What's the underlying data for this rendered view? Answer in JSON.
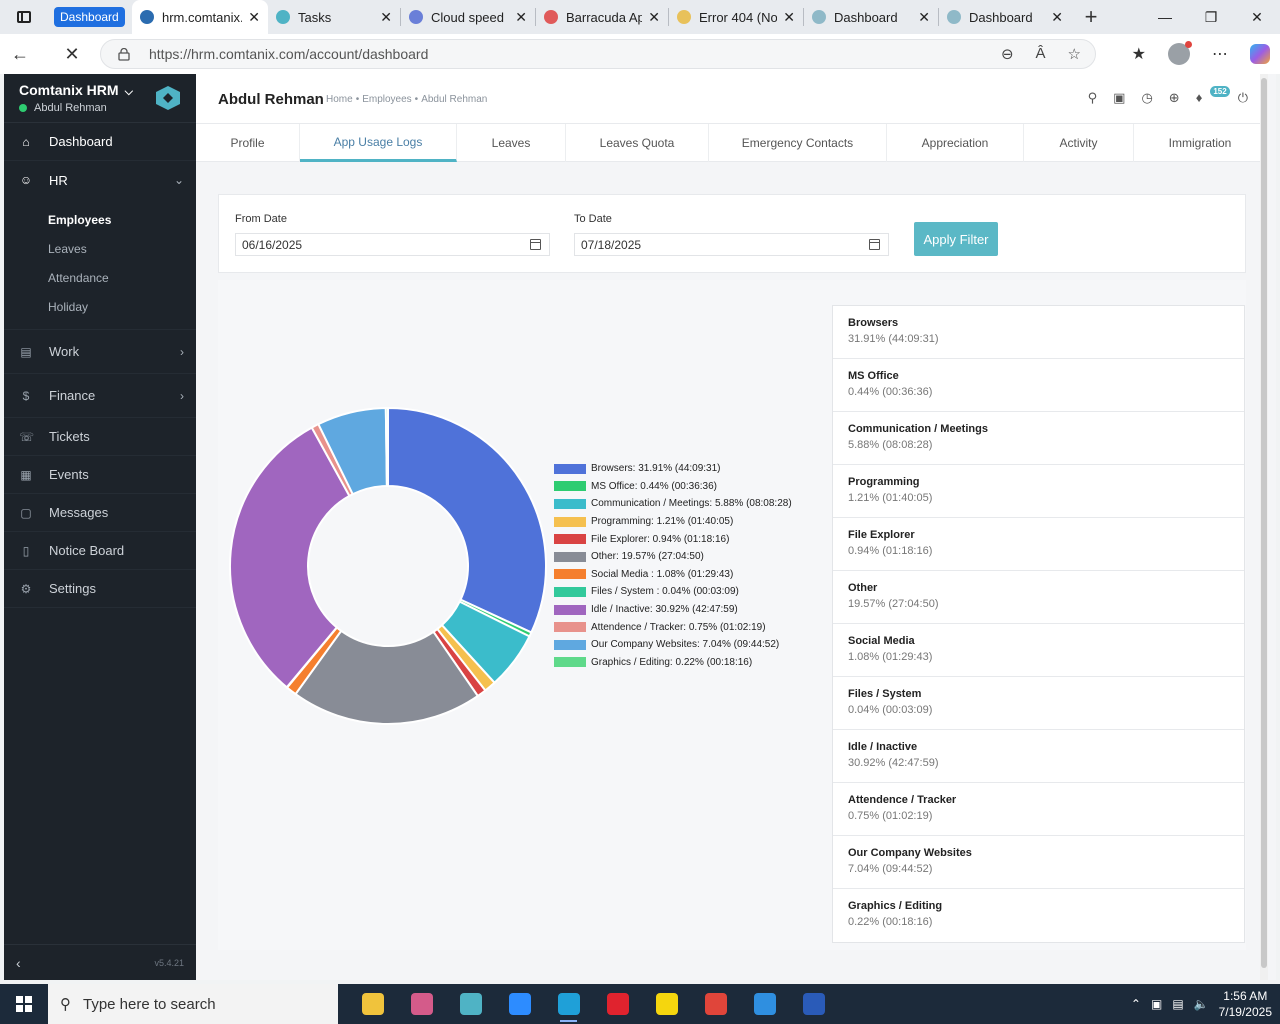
{
  "browser": {
    "tabs": [
      {
        "label": "Dashboard",
        "type": "group",
        "color": "#1f6fe0"
      },
      {
        "label": "hrm.comtanix.com",
        "active": true,
        "fav": "#2b6cb0"
      },
      {
        "label": "Tasks",
        "fav": "#4fb3c5"
      },
      {
        "label": "Cloud speed",
        "fav": "#6a7fd8"
      },
      {
        "label": "Barracuda Ap",
        "fav": "#e05a5a"
      },
      {
        "label": "Error 404 (No",
        "fav": "#e8c15a"
      },
      {
        "label": "Dashboard",
        "fav": "#8fb9c8"
      },
      {
        "label": "Dashboard",
        "fav": "#8fb9c8"
      }
    ],
    "url": "https://hrm.comtanix.com/account/dashboard"
  },
  "sidebar": {
    "brand": "Comtanix HRM",
    "user": "Abdul Rehman",
    "items": [
      {
        "label": "Dashboard",
        "icon": "home-icon",
        "active": true
      },
      {
        "label": "HR",
        "icon": "users-icon",
        "expanded": true
      },
      {
        "label": "Work",
        "icon": "briefcase-icon"
      },
      {
        "label": "Finance",
        "icon": "dollar-icon"
      },
      {
        "label": "Tickets",
        "icon": "headset-icon"
      },
      {
        "label": "Events",
        "icon": "calendar-icon"
      },
      {
        "label": "Messages",
        "icon": "chat-icon"
      },
      {
        "label": "Notice Board",
        "icon": "clipboard-icon"
      },
      {
        "label": "Settings",
        "icon": "gear-icon"
      }
    ],
    "hr_sub": [
      "Employees",
      "Leaves",
      "Attendance",
      "Holiday"
    ],
    "version": "v5.4.21"
  },
  "header": {
    "title": "Abdul Rehman",
    "breadcrumbs": [
      "Home",
      "•",
      "Employees",
      "•",
      "Abdul Rehman"
    ],
    "notification_count": "152"
  },
  "tabs": [
    "Profile",
    "App Usage Logs",
    "Leaves",
    "Leaves Quota",
    "Emergency Contacts",
    "Appreciation",
    "Activity",
    "Immigration"
  ],
  "active_tab": 1,
  "filter": {
    "from_label": "From Date",
    "from_value": "06/16/2025",
    "to_label": "To Date",
    "to_value": "07/18/2025",
    "apply_label": "Apply Filter"
  },
  "chart_data": {
    "type": "pie",
    "donut": true,
    "series": [
      {
        "name": "Browsers",
        "percent": 31.91,
        "time": "44:09:31",
        "color": "#4f72d9",
        "legend": "Browsers: 31.91% (44:09:31)"
      },
      {
        "name": "MS Office",
        "percent": 0.44,
        "time": "00:36:36",
        "color": "#2ecc71",
        "legend": "MS Office: 0.44% (00:36:36)"
      },
      {
        "name": "Communication / Meetings",
        "percent": 5.88,
        "time": "08:08:28",
        "color": "#3bbccb",
        "legend": "Communication / Meetings: 5.88% (08:08:28)"
      },
      {
        "name": "Programming",
        "percent": 1.21,
        "time": "01:40:05",
        "color": "#f5c04f",
        "legend": "Programming: 1.21% (01:40:05)"
      },
      {
        "name": "File Explorer",
        "percent": 0.94,
        "time": "01:18:16",
        "color": "#d94343",
        "legend": "File Explorer: 0.94% (01:18:16)"
      },
      {
        "name": "Other",
        "percent": 19.57,
        "time": "27:04:50",
        "color": "#888c96",
        "legend": "Other: 19.57% (27:04:50)"
      },
      {
        "name": "Social Media",
        "percent": 1.08,
        "time": "01:29:43",
        "color": "#f57f2e",
        "legend": "Social Media  : 1.08% (01:29:43)"
      },
      {
        "name": "Files / System",
        "percent": 0.04,
        "time": "00:03:09",
        "color": "#33c99b",
        "legend": "Files / System  : 0.04% (00:03:09)"
      },
      {
        "name": "Idle / Inactive",
        "percent": 30.92,
        "time": "42:47:59",
        "color": "#a066bf",
        "legend": "Idle / Inactive: 30.92% (42:47:59)"
      },
      {
        "name": "Attendence / Tracker",
        "percent": 0.75,
        "time": "01:02:19",
        "color": "#e8928c",
        "legend": "Attendence / Tracker: 0.75% (01:02:19)"
      },
      {
        "name": "Our Company Websites",
        "percent": 7.04,
        "time": "09:44:52",
        "color": "#5fa8e0",
        "legend": "Our Company Websites: 7.04% (09:44:52)"
      },
      {
        "name": "Graphics / Editing",
        "percent": 0.22,
        "time": "00:18:16",
        "color": "#5fd98a",
        "legend": "Graphics / Editing: 0.22% (00:18:16)"
      }
    ]
  },
  "categories": [
    {
      "name": "Browsers",
      "value": "31.91% (44:09:31)"
    },
    {
      "name": "MS Office",
      "value": "0.44% (00:36:36)"
    },
    {
      "name": "Communication / Meetings",
      "value": "5.88% (08:08:28)"
    },
    {
      "name": "Programming",
      "value": "1.21% (01:40:05)"
    },
    {
      "name": "File Explorer",
      "value": "0.94% (01:18:16)"
    },
    {
      "name": "Other",
      "value": "19.57% (27:04:50)"
    },
    {
      "name": "Social Media",
      "value": "1.08% (01:29:43)"
    },
    {
      "name": "Files / System",
      "value": "0.04% (00:03:09)"
    },
    {
      "name": "Idle / Inactive",
      "value": "30.92% (42:47:59)"
    },
    {
      "name": "Attendence / Tracker",
      "value": "0.75% (01:02:19)"
    },
    {
      "name": "Our Company Websites",
      "value": "7.04% (09:44:52)"
    },
    {
      "name": "Graphics / Editing",
      "value": "0.22% (00:18:16)"
    }
  ],
  "taskbar": {
    "search_placeholder": "Type here to search",
    "time": "1:56 AM",
    "date": "7/19/2025",
    "apps": [
      {
        "name": "file-explorer-icon",
        "color": "#f0c33c"
      },
      {
        "name": "snipping-app-icon",
        "color": "#d45b8a"
      },
      {
        "name": "hrm-app-icon",
        "color": "#4fb3c5"
      },
      {
        "name": "zoom-icon",
        "color": "#2d8cff"
      },
      {
        "name": "edge-icon",
        "color": "#1fa0d8",
        "running": true
      },
      {
        "name": "opera-icon",
        "color": "#e0232e"
      },
      {
        "name": "sticky-notes-icon",
        "color": "#f5d60e"
      },
      {
        "name": "chrome-icon",
        "color": "#e0453a"
      },
      {
        "name": "vscode-icon",
        "color": "#2f8fe0"
      },
      {
        "name": "powershell-icon",
        "color": "#2a5bb8"
      }
    ]
  }
}
